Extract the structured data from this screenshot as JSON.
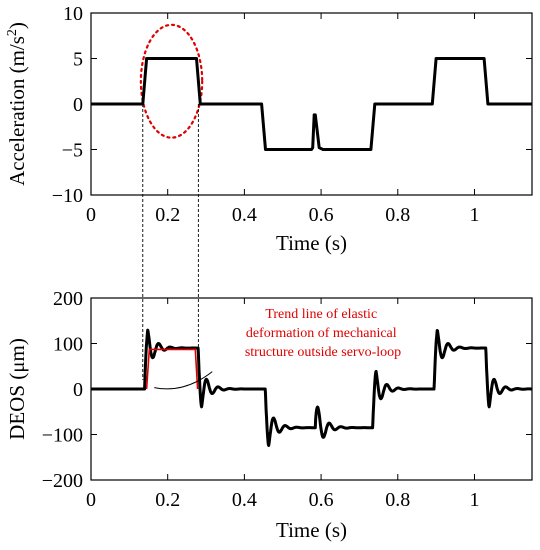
{
  "chart_data": [
    {
      "type": "line",
      "xlabel": "Time (s)",
      "ylabel_main": "Acceleration (m/s",
      "ylabel_sup": "2",
      "ylabel_close": ")",
      "xlim": [
        0,
        1.15
      ],
      "ylim": [
        -10,
        10
      ],
      "xticks": [
        0,
        0.2,
        0.4,
        0.6,
        0.8,
        1
      ],
      "xtick_labels": [
        "0",
        "0.2",
        "0.4",
        "0.6",
        "0.8",
        "1"
      ],
      "yticks": [
        10,
        5,
        0,
        -5,
        -10
      ],
      "ytick_labels": [
        "10",
        "5",
        "0",
        "−5",
        "−10"
      ],
      "grid": false,
      "series": [
        {
          "x": [
            0,
            0.135,
            0.145,
            0.275,
            0.285,
            0.445,
            0.455,
            0.575,
            0.578,
            0.582,
            0.585,
            0.595,
            0.605,
            0.73,
            0.74,
            0.89,
            0.9,
            1.025,
            1.035,
            1.15
          ],
          "y": [
            0,
            0,
            5,
            5,
            0,
            0,
            -5,
            -5,
            -4.8,
            -1.2,
            -1.2,
            -4.8,
            -5,
            -5,
            0,
            0,
            5,
            5,
            0,
            0
          ]
        }
      ],
      "highlight_ellipse": {
        "cx": 0.21,
        "cy": 2.5,
        "rx": 0.08,
        "ry": 6.2,
        "color": "#e00000"
      },
      "guide_lines_x": [
        0.135,
        0.28
      ]
    },
    {
      "type": "line",
      "xlabel": "Time (s)",
      "ylabel": "DEOS (μm)",
      "xlim": [
        0,
        1.15
      ],
      "ylim": [
        -200,
        200
      ],
      "xticks": [
        0,
        0.2,
        0.4,
        0.6,
        0.8,
        1
      ],
      "xtick_labels": [
        "0",
        "0.2",
        "0.4",
        "0.6",
        "0.8",
        "1"
      ],
      "yticks": [
        200,
        100,
        0,
        -100,
        -200
      ],
      "ytick_labels": [
        "200",
        "100",
        "0",
        "−100",
        "−200"
      ],
      "grid": false,
      "series": [
        {
          "segments": [
            {
              "t0": 0.14,
              "dir": 1,
              "from": 0,
              "to": 90
            },
            {
              "t0": 0.28,
              "dir": -1,
              "from": 90,
              "to": 0
            },
            {
              "t0": 0.455,
              "dir": -1,
              "from": 0,
              "to": -85
            },
            {
              "t0": 0.585,
              "dir": 1,
              "from": -85,
              "to": -85
            },
            {
              "t0": 0.735,
              "dir": 1,
              "from": -85,
              "to": 0
            },
            {
              "t0": 0.895,
              "dir": 1,
              "from": 0,
              "to": 90
            },
            {
              "t0": 1.03,
              "dir": -1,
              "from": 90,
              "to": 0
            }
          ]
        }
      ],
      "trend_line": {
        "color": "#e00000",
        "points": [
          [
            0.145,
            0
          ],
          [
            0.152,
            87
          ],
          [
            0.272,
            87
          ],
          [
            0.278,
            0
          ]
        ]
      },
      "annotation": {
        "lines": [
          "Trend line of elastic",
          "deformation of mechanical",
          "structure outside servo-loop"
        ],
        "color": "#e00000"
      }
    }
  ]
}
